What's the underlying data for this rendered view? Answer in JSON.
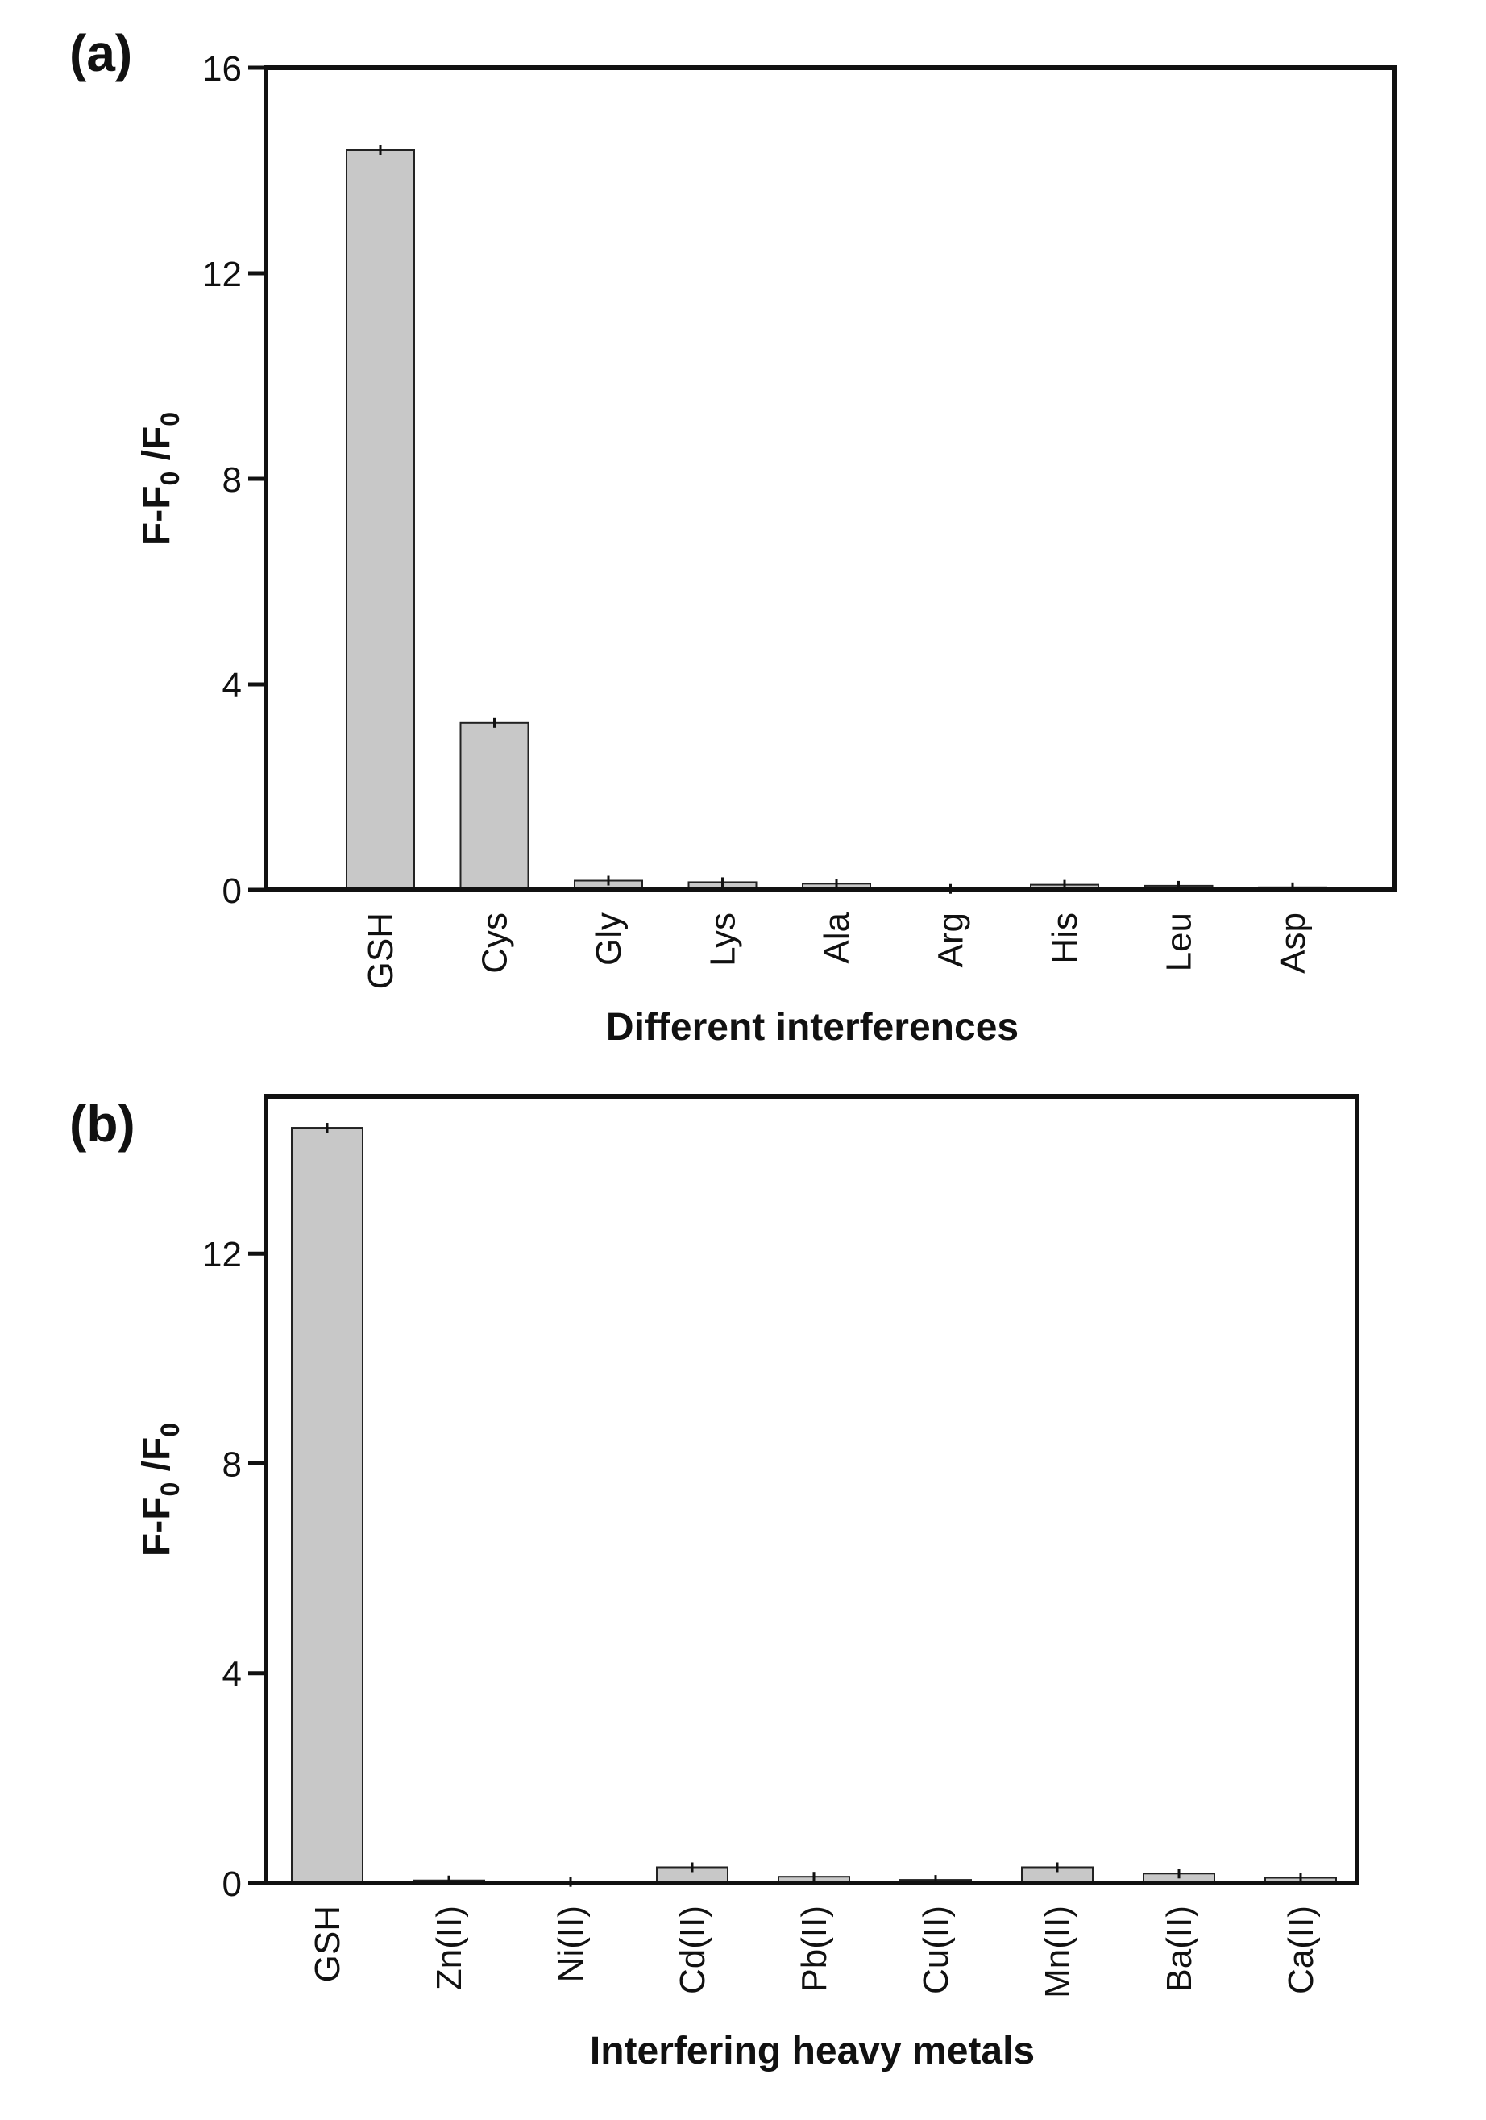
{
  "chart_data": [
    {
      "panel_label": "(a)",
      "type": "bar",
      "categories": [
        "GSH",
        "Cys",
        "Gly",
        "Lys",
        "Ala",
        "Arg",
        "His",
        "Leu",
        "Asp"
      ],
      "values": [
        14.4,
        3.25,
        0.18,
        0.15,
        0.12,
        0.02,
        0.1,
        0.08,
        0.05
      ],
      "xlabel": "Different interferences",
      "ylabel": {
        "main": "F-F",
        "sub1": "0",
        "mid": " /F",
        "sub2": "0"
      },
      "ylim": [
        0,
        16
      ],
      "yticks": [
        "0",
        "4",
        "8",
        "12",
        "16"
      ],
      "bar_color": "#c8c8c8"
    },
    {
      "panel_label": "(b)",
      "type": "bar",
      "categories": [
        "GSH",
        "Zn(II)",
        "Ni(II)",
        "Cd(II)",
        "Pb(II)",
        "Cu(II)",
        "Mn(II)",
        "Ba(II)",
        "Ca(II)"
      ],
      "values": [
        14.4,
        0.05,
        0.02,
        0.3,
        0.12,
        0.06,
        0.3,
        0.18,
        0.1
      ],
      "xlabel": "Interfering heavy metals",
      "ylabel": {
        "main": "F-F",
        "sub1": "0",
        "mid": " /F",
        "sub2": "0"
      },
      "ylim": [
        0,
        15
      ],
      "yticks": [
        "0",
        "4",
        "8",
        "12"
      ],
      "bar_color": "#c8c8c8"
    }
  ]
}
